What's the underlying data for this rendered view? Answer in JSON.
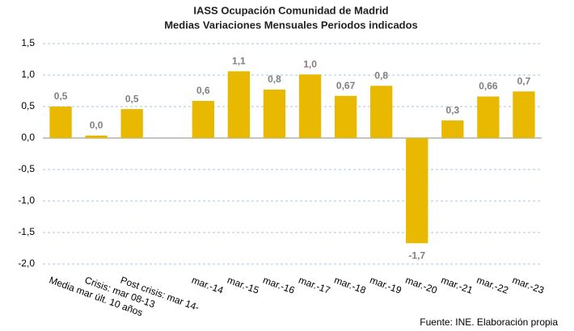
{
  "chart_data": {
    "type": "bar",
    "title": "IASS Ocupación Comunidad de Madrid",
    "subtitle": "Medias Variaciones Mensuales  Periodos indicados",
    "categories": [
      "Media mar últ. 10 años",
      "Crisis: mar 08-13",
      "Post crisis: mar 14-",
      null,
      "mar.-14",
      "mar.-15",
      "mar.-16",
      "mar.-17",
      "mar.-18",
      "mar.-19",
      "mar.-20",
      "mar.-21",
      "mar.-22",
      "mar.-23"
    ],
    "values": [
      0.5,
      0.04,
      0.46,
      null,
      0.59,
      1.06,
      0.77,
      1.01,
      0.67,
      0.83,
      -1.67,
      0.28,
      0.66,
      0.74
    ],
    "value_labels": [
      "0,5",
      "0,0",
      "0,5",
      null,
      "0,6",
      "1,1",
      "0,8",
      "1,0",
      "0,67",
      "0,8",
      "-1,7",
      "0,3",
      "0,66",
      "0,7"
    ],
    "color": "#e8b900",
    "ylim": [
      -2,
      1.5
    ],
    "yticks": [
      {
        "value": -2,
        "label": "-2,0"
      },
      {
        "value": -1.5,
        "label": "-1,5"
      },
      {
        "value": -1,
        "label": "-1,0"
      },
      {
        "value": -0.5,
        "label": "-0,5"
      },
      {
        "value": 0,
        "label": "0,0"
      },
      {
        "value": 0.5,
        "label": "0,5"
      },
      {
        "value": 1,
        "label": "1,0"
      },
      {
        "value": 1.5,
        "label": "1,5"
      }
    ],
    "grid": true,
    "source": "Fuente: INE.  Elaboración propia"
  }
}
